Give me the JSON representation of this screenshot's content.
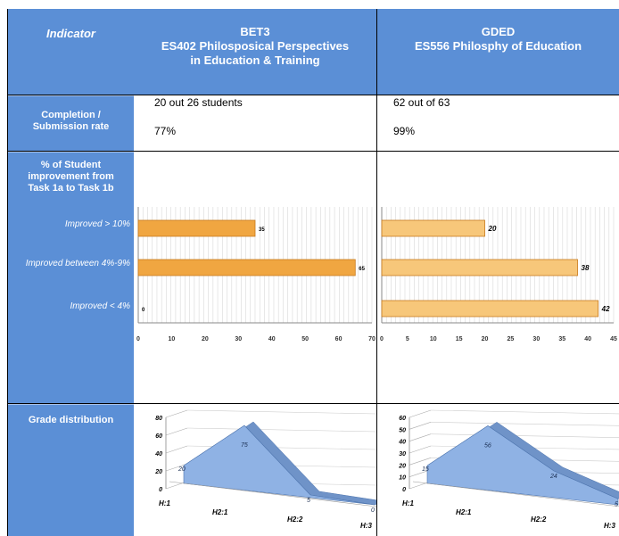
{
  "header": {
    "indicator": "Indicator",
    "col1_line1": "BET3",
    "col1_line2": "ES402 Philosposical Perspectives",
    "col1_line3": "in Education & Training",
    "col2_line1": "GDED",
    "col2_line2": "ES556 Philosphy of Education"
  },
  "completion": {
    "label_line1": "Completion /",
    "label_line2": "Submission rate",
    "c1_count": "20 out 26 students",
    "c1_pct": "77%",
    "c2_count": "62 out of 63",
    "c2_pct": "99%"
  },
  "improvement": {
    "label_line1": "% of Student",
    "label_line2": "improvement from",
    "label_line3": "Task 1a to Task 1b",
    "cat1": "Improved > 10%",
    "cat2": "Improved between 4%-9%",
    "cat3": "Improved < 4%"
  },
  "grade": {
    "label": "Grade distribution"
  },
  "colors": {
    "blue": "#5b8fd6",
    "bar_orange": "#f0a641",
    "bar_light": "#f7c77a",
    "triangle": "#8fb2e4"
  },
  "chart_data": [
    {
      "type": "bar",
      "orientation": "horizontal",
      "categories": [
        "Improved > 10%",
        "Improved between 4%-9%",
        "Improved < 4%"
      ],
      "values": [
        35,
        65,
        0
      ],
      "xlim": [
        0,
        70
      ],
      "xticks": [
        0,
        10,
        20,
        30,
        40,
        50,
        60,
        70
      ],
      "grid": true
    },
    {
      "type": "bar",
      "orientation": "horizontal",
      "categories": [
        "Improved > 10%",
        "Improved between 4%-9%",
        "Improved < 4%"
      ],
      "values": [
        20,
        38,
        42
      ],
      "xlim": [
        0,
        45
      ],
      "xticks": [
        0,
        5,
        10,
        15,
        20,
        25,
        30,
        35,
        40,
        45
      ],
      "grid": true
    },
    {
      "type": "area",
      "categories": [
        "H:1",
        "H2:1",
        "H2:2",
        "H:3"
      ],
      "values": [
        20,
        75,
        5,
        0
      ],
      "ylim": [
        0,
        80
      ],
      "yticks": [
        0,
        20,
        40,
        60,
        80
      ]
    },
    {
      "type": "area",
      "categories": [
        "H:1",
        "H2:1",
        "H2:2",
        "H:3"
      ],
      "values": [
        15,
        56,
        24,
        5
      ],
      "ylim": [
        0,
        60
      ],
      "yticks": [
        0,
        10,
        20,
        30,
        40,
        50,
        60
      ]
    }
  ]
}
